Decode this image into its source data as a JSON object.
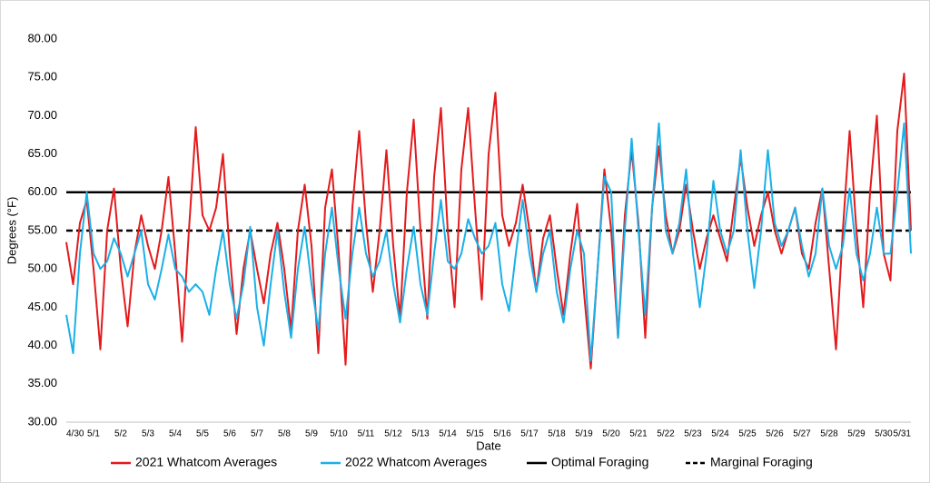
{
  "chart_data": {
    "type": "line",
    "y_label": "Degrees (°F)",
    "x_label": "Date",
    "categories": [
      "4/30",
      null,
      null,
      null,
      "5/1",
      null,
      null,
      null,
      "5/2",
      null,
      null,
      null,
      "5/3",
      null,
      null,
      null,
      "5/4",
      null,
      null,
      null,
      "5/5",
      null,
      null,
      null,
      "5/6",
      null,
      null,
      null,
      "5/7",
      null,
      null,
      null,
      "5/8",
      null,
      null,
      null,
      "5/9",
      null,
      null,
      null,
      "5/10",
      null,
      null,
      null,
      "5/11",
      null,
      null,
      null,
      "5/12",
      null,
      null,
      null,
      "5/13",
      null,
      null,
      null,
      "5/14",
      null,
      null,
      null,
      "5/15",
      null,
      null,
      null,
      "5/16",
      null,
      null,
      null,
      "5/17",
      null,
      null,
      null,
      "5/18",
      null,
      null,
      null,
      "5/19",
      null,
      null,
      null,
      "5/20",
      null,
      null,
      null,
      "5/21",
      null,
      null,
      null,
      "5/22",
      null,
      null,
      null,
      "5/23",
      null,
      null,
      null,
      "5/24",
      null,
      null,
      null,
      "5/25",
      null,
      null,
      null,
      "5/26",
      null,
      null,
      null,
      "5/27",
      null,
      null,
      null,
      "5/28",
      null,
      null,
      null,
      "5/29",
      null,
      null,
      null,
      "5/30",
      null,
      null,
      null,
      "5/31"
    ],
    "series": [
      {
        "name": "2021 Whatcom Averages",
        "color": "#e41a1c",
        "values": [
          53.5,
          48,
          56,
          59,
          50,
          39.5,
          55,
          60.5,
          50,
          42.5,
          52,
          57,
          53,
          50,
          55,
          62,
          52,
          40.5,
          55,
          68.5,
          57,
          55,
          58,
          65,
          52,
          41.5,
          50,
          55,
          50,
          45.5,
          52,
          56,
          50,
          42,
          55,
          61,
          53,
          39,
          58,
          63,
          52,
          37.5,
          58,
          68,
          56,
          47,
          55,
          65.5,
          53,
          43.5,
          60,
          69.5,
          55,
          43.5,
          62,
          71,
          55,
          45,
          63,
          71,
          58,
          46,
          65,
          73,
          57,
          53,
          56,
          61,
          55,
          47,
          54,
          57,
          50,
          44,
          52,
          58.5,
          47,
          37,
          50,
          63,
          55,
          41,
          57,
          65.5,
          56,
          41,
          58,
          66,
          57,
          52,
          55,
          61,
          55,
          50,
          54,
          57,
          54,
          51,
          58,
          64.5,
          58,
          53,
          57,
          60,
          55,
          52,
          55,
          58,
          52,
          50,
          56,
          60.5,
          50,
          39.5,
          55,
          68,
          55,
          45,
          60,
          70,
          52,
          48.5,
          68,
          75.5,
          55
        ]
      },
      {
        "name": "2022 Whatcom Averages",
        "color": "#1ab0e8",
        "values": [
          44,
          39,
          52,
          60,
          52,
          50,
          51,
          54,
          52,
          49,
          52,
          55,
          48,
          46,
          50,
          54.5,
          50,
          49,
          47,
          48,
          47,
          44,
          50,
          55,
          48,
          43.5,
          48,
          55.5,
          45,
          40,
          48,
          55,
          47,
          41,
          50,
          55.5,
          48,
          42,
          52,
          58,
          50,
          43.5,
          52,
          58,
          52,
          49,
          51,
          55,
          48,
          43,
          50,
          55.5,
          48,
          44,
          52,
          59,
          51,
          50,
          52,
          56.5,
          54,
          52,
          53,
          56,
          48,
          44.5,
          52,
          59,
          52,
          47,
          52,
          55,
          47,
          43,
          50,
          55,
          52,
          38,
          50,
          62,
          60,
          41,
          55,
          67,
          55,
          44,
          58,
          69,
          55,
          52,
          56,
          63,
          52,
          45,
          52,
          61.5,
          55,
          52,
          55,
          65.5,
          55,
          47.5,
          55,
          65.5,
          56,
          53,
          55,
          58,
          53,
          49,
          52,
          60.5,
          53,
          50,
          53,
          60.5,
          52,
          48.5,
          52,
          58,
          52,
          52,
          60,
          69,
          52
        ]
      }
    ],
    "reference_lines": [
      {
        "name": "Optimal Foraging",
        "value": 60,
        "color": "#000000",
        "dashed": false
      },
      {
        "name": "Marginal Foraging",
        "value": 55,
        "color": "#000000",
        "dashed": true
      }
    ],
    "ylim": [
      30,
      80
    ],
    "yticks": [
      {
        "value": 30,
        "label": "30.00"
      },
      {
        "value": 35,
        "label": "35.00"
      },
      {
        "value": 40,
        "label": "40.00"
      },
      {
        "value": 45,
        "label": "45.00"
      },
      {
        "value": 50,
        "label": "50.00"
      },
      {
        "value": 55,
        "label": "55.00"
      },
      {
        "value": 60,
        "label": "60.00"
      },
      {
        "value": 65,
        "label": "65.00"
      },
      {
        "value": 70,
        "label": "70.00"
      },
      {
        "value": 75,
        "label": "75.00"
      },
      {
        "value": 80,
        "label": "80.00"
      }
    ],
    "grid": false,
    "legend": "bottom"
  }
}
